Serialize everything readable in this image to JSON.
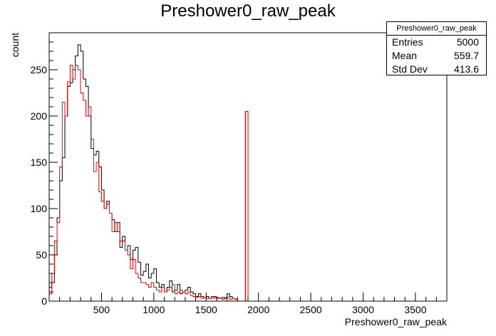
{
  "chart_data": {
    "type": "histogram",
    "title": "Preshower0_raw_peak",
    "xlabel": "Preshower0_raw_peak",
    "ylabel": "count",
    "xlim": [
      0,
      3800
    ],
    "ylim": [
      0,
      290
    ],
    "bin_width": 25,
    "x_ticks": [
      500,
      1000,
      1500,
      2000,
      2500,
      3000,
      3500
    ],
    "y_ticks": [
      0,
      50,
      100,
      150,
      200,
      250
    ],
    "stats_box": {
      "name": "Preshower0_raw_peak",
      "entries_label": "Entries",
      "entries": "5000",
      "mean_label": "Mean",
      "mean": "559.7",
      "stddev_label": "Std Dev",
      "stddev": "413.6"
    },
    "series": [
      {
        "color": "#000000",
        "values": [
          15,
          20,
          50,
          90,
          130,
          155,
          200,
          232,
          236,
          250,
          265,
          277,
          270,
          240,
          232,
          200,
          165,
          158,
          162,
          145,
          120,
          100,
          108,
          95,
          88,
          75,
          85,
          58,
          70,
          55,
          60,
          45,
          55,
          58,
          42,
          28,
          32,
          40,
          25,
          30,
          35,
          20,
          15,
          18,
          10,
          15,
          22,
          10,
          12,
          18,
          8,
          10,
          12,
          15,
          10,
          8,
          5,
          8,
          5,
          4,
          5,
          3,
          5,
          4,
          3,
          3,
          4,
          3,
          8,
          5,
          3,
          2,
          0,
          0,
          0,
          205,
          0,
          0,
          0,
          0,
          0,
          0,
          0,
          0,
          0,
          0,
          0,
          0,
          0,
          0,
          0,
          0,
          0,
          0,
          0,
          0,
          0,
          0,
          0,
          0,
          0,
          0,
          0,
          0,
          0,
          0,
          0,
          0,
          0,
          0,
          0,
          0,
          0,
          0,
          0,
          0,
          0,
          0,
          0,
          0,
          0,
          0,
          0,
          0,
          0,
          0,
          0,
          0,
          0,
          0,
          0,
          0,
          0,
          0,
          0,
          0,
          0,
          0,
          0,
          0,
          0,
          0,
          0,
          0,
          0,
          0,
          0,
          0,
          0,
          0,
          0,
          0
        ]
      },
      {
        "color": "#ff0000",
        "values": [
          8,
          30,
          65,
          85,
          145,
          215,
          200,
          237,
          255,
          240,
          255,
          250,
          225,
          217,
          200,
          210,
          175,
          140,
          150,
          118,
          108,
          100,
          105,
          95,
          75,
          85,
          75,
          65,
          65,
          55,
          50,
          35,
          45,
          30,
          25,
          20,
          20,
          18,
          15,
          20,
          15,
          12,
          10,
          15,
          10,
          12,
          15,
          18,
          8,
          10,
          12,
          10,
          8,
          10,
          6,
          5,
          4,
          5,
          3,
          4,
          3,
          3,
          3,
          5,
          4,
          3,
          2,
          4,
          4,
          2,
          3,
          2,
          0,
          0,
          0,
          205,
          0,
          0,
          0,
          0,
          0,
          0,
          0,
          0,
          0,
          0,
          0,
          0,
          0,
          0,
          0,
          0,
          0,
          0,
          0,
          0,
          0,
          0,
          0,
          0,
          0,
          0,
          0,
          0,
          0,
          0,
          0,
          0,
          0,
          0,
          0,
          0,
          0,
          0,
          0,
          0,
          0,
          0,
          0,
          0,
          0,
          0,
          0,
          0,
          0,
          0,
          0,
          0,
          0,
          0,
          0,
          0,
          0,
          0,
          0,
          0,
          0,
          0,
          0,
          0,
          0,
          0,
          0,
          0,
          0,
          0,
          0,
          0,
          0,
          0,
          0,
          0
        ]
      }
    ]
  }
}
